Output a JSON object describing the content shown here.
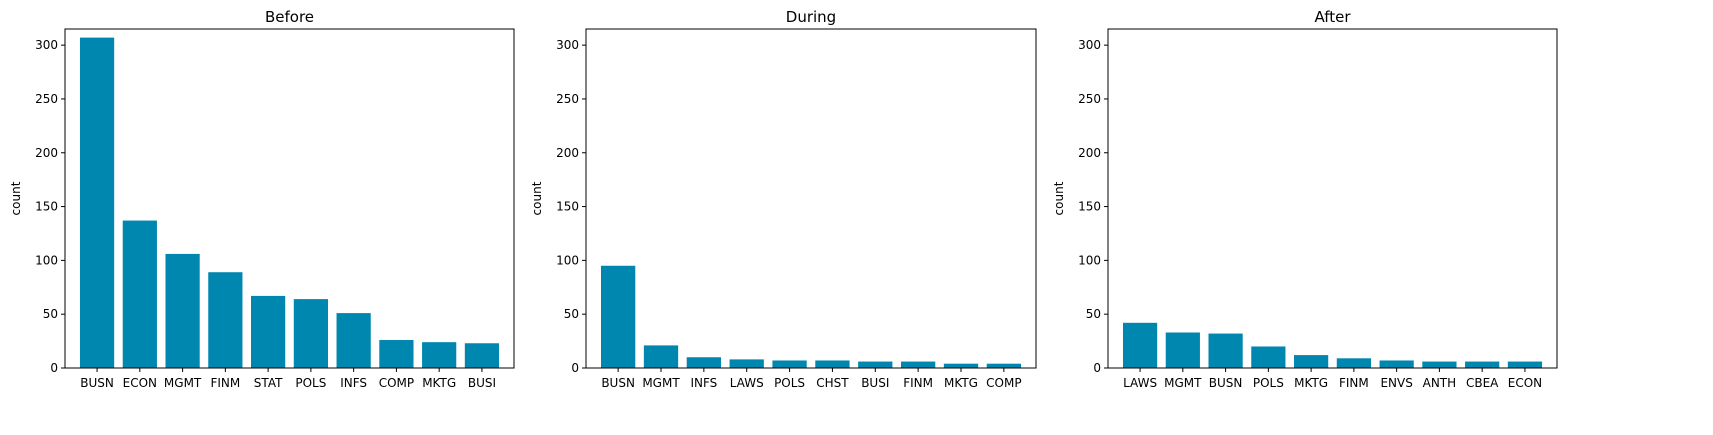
{
  "chart_data": [
    {
      "type": "bar",
      "title": "Before",
      "xlabel": "",
      "ylabel": "count",
      "ylim": [
        0,
        315
      ],
      "yticks": [
        0,
        50,
        100,
        150,
        200,
        250,
        300
      ],
      "categories": [
        "BUSN",
        "ECON",
        "MGMT",
        "FINM",
        "STAT",
        "POLS",
        "INFS",
        "COMP",
        "MKTG",
        "BUSI"
      ],
      "values": [
        307,
        137,
        106,
        89,
        67,
        64,
        51,
        26,
        24,
        23
      ],
      "color": "#0087b0"
    },
    {
      "type": "bar",
      "title": "During",
      "xlabel": "",
      "ylabel": "count",
      "ylim": [
        0,
        315
      ],
      "yticks": [
        0,
        50,
        100,
        150,
        200,
        250,
        300
      ],
      "categories": [
        "BUSN",
        "MGMT",
        "INFS",
        "LAWS",
        "POLS",
        "CHST",
        "BUSI",
        "FINM",
        "MKTG",
        "COMP"
      ],
      "values": [
        95,
        21,
        10,
        8,
        7,
        7,
        6,
        6,
        4,
        4
      ],
      "color": "#0087b0"
    },
    {
      "type": "bar",
      "title": "After",
      "xlabel": "",
      "ylabel": "count",
      "ylim": [
        0,
        315
      ],
      "yticks": [
        0,
        50,
        100,
        150,
        200,
        250,
        300
      ],
      "categories": [
        "LAWS",
        "MGMT",
        "BUSN",
        "POLS",
        "MKTG",
        "FINM",
        "ENVS",
        "ANTH",
        "CBEA",
        "ECON"
      ],
      "values": [
        42,
        33,
        32,
        20,
        12,
        9,
        7,
        6,
        6,
        6
      ],
      "color": "#0087b0"
    }
  ]
}
